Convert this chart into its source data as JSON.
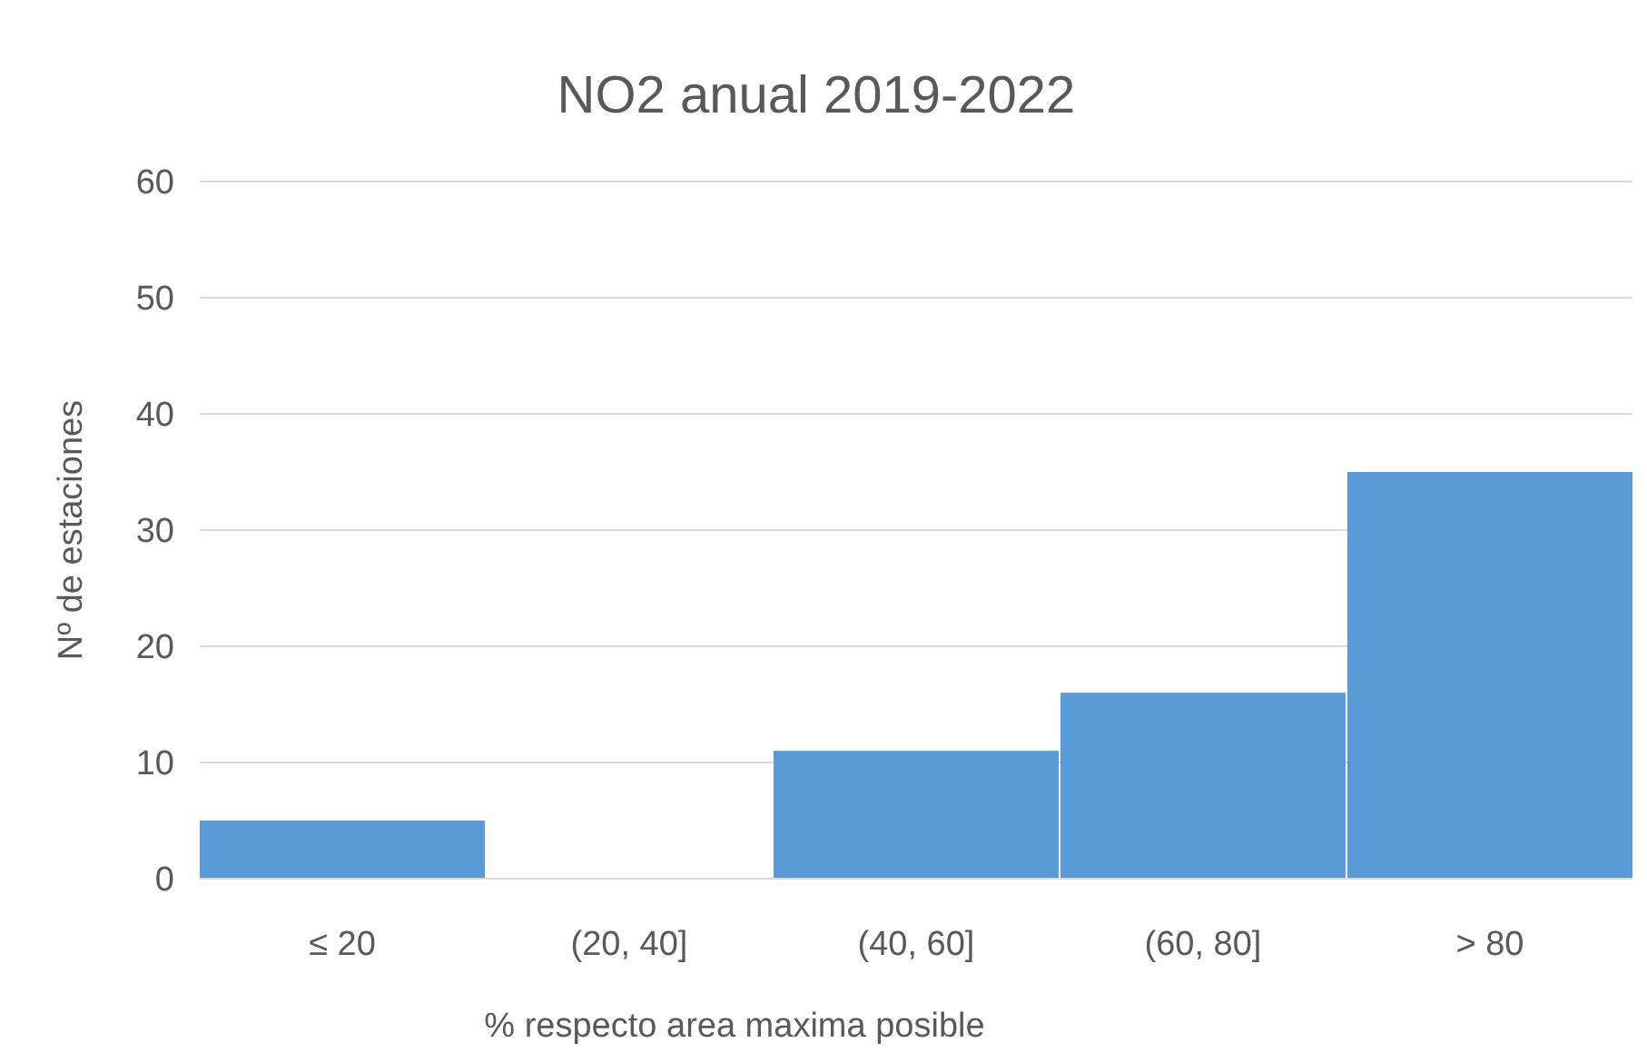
{
  "chart_data": {
    "type": "bar",
    "title": "NO2 anual 2019-2022",
    "xlabel": "% respecto area maxima posible",
    "ylabel": "Nº de estaciones",
    "categories": [
      "≤ 20",
      "(20, 40]",
      "(40, 60]",
      "(60, 80]",
      "> 80"
    ],
    "values": [
      5,
      0,
      11,
      16,
      35
    ],
    "color": "#5b9bd5",
    "ylim": [
      0,
      60
    ],
    "yticks": [
      0,
      10,
      20,
      30,
      40,
      50,
      60
    ],
    "grid": "y"
  }
}
